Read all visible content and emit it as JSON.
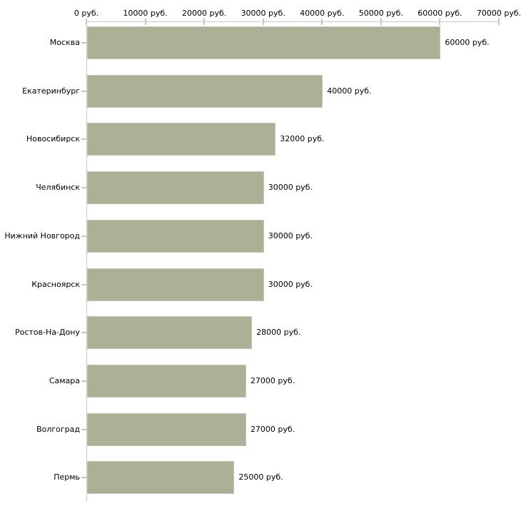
{
  "chart_data": {
    "type": "bar",
    "orientation": "horizontal",
    "title": "",
    "categories": [
      "Москва",
      "Екатеринбург",
      "Новосибирск",
      "Челябинск",
      "Нижний Новгород",
      "Красноярск",
      "Ростов-На-Дону",
      "Самара",
      "Волгоград",
      "Пермь"
    ],
    "values": [
      60000,
      40000,
      32000,
      30000,
      30000,
      30000,
      28000,
      27000,
      27000,
      25000
    ],
    "value_labels": [
      "60000 руб.",
      "40000 руб.",
      "32000 руб.",
      "30000 руб.",
      "30000 руб.",
      "30000 руб.",
      "28000 руб.",
      "27000 руб.",
      "27000 руб.",
      "25000 руб."
    ],
    "x_axis": {
      "position": "top",
      "min": 0,
      "max": 70000,
      "tick_values": [
        0,
        10000,
        20000,
        30000,
        40000,
        50000,
        60000,
        70000
      ],
      "tick_labels": [
        "0 руб.",
        "10000 руб.",
        "20000 руб.",
        "30000 руб.",
        "40000 руб.",
        "50000 руб.",
        "60000 руб.",
        "70000 руб."
      ]
    },
    "legend": "none",
    "grid": "off",
    "colors": {
      "bar_fill": "#aab197",
      "bar_border": "#c4c7ab",
      "axis_line": "#c9c9c9",
      "tick_mark": "#cdc9a8",
      "text": "#000000",
      "background": "#ffffff"
    }
  }
}
